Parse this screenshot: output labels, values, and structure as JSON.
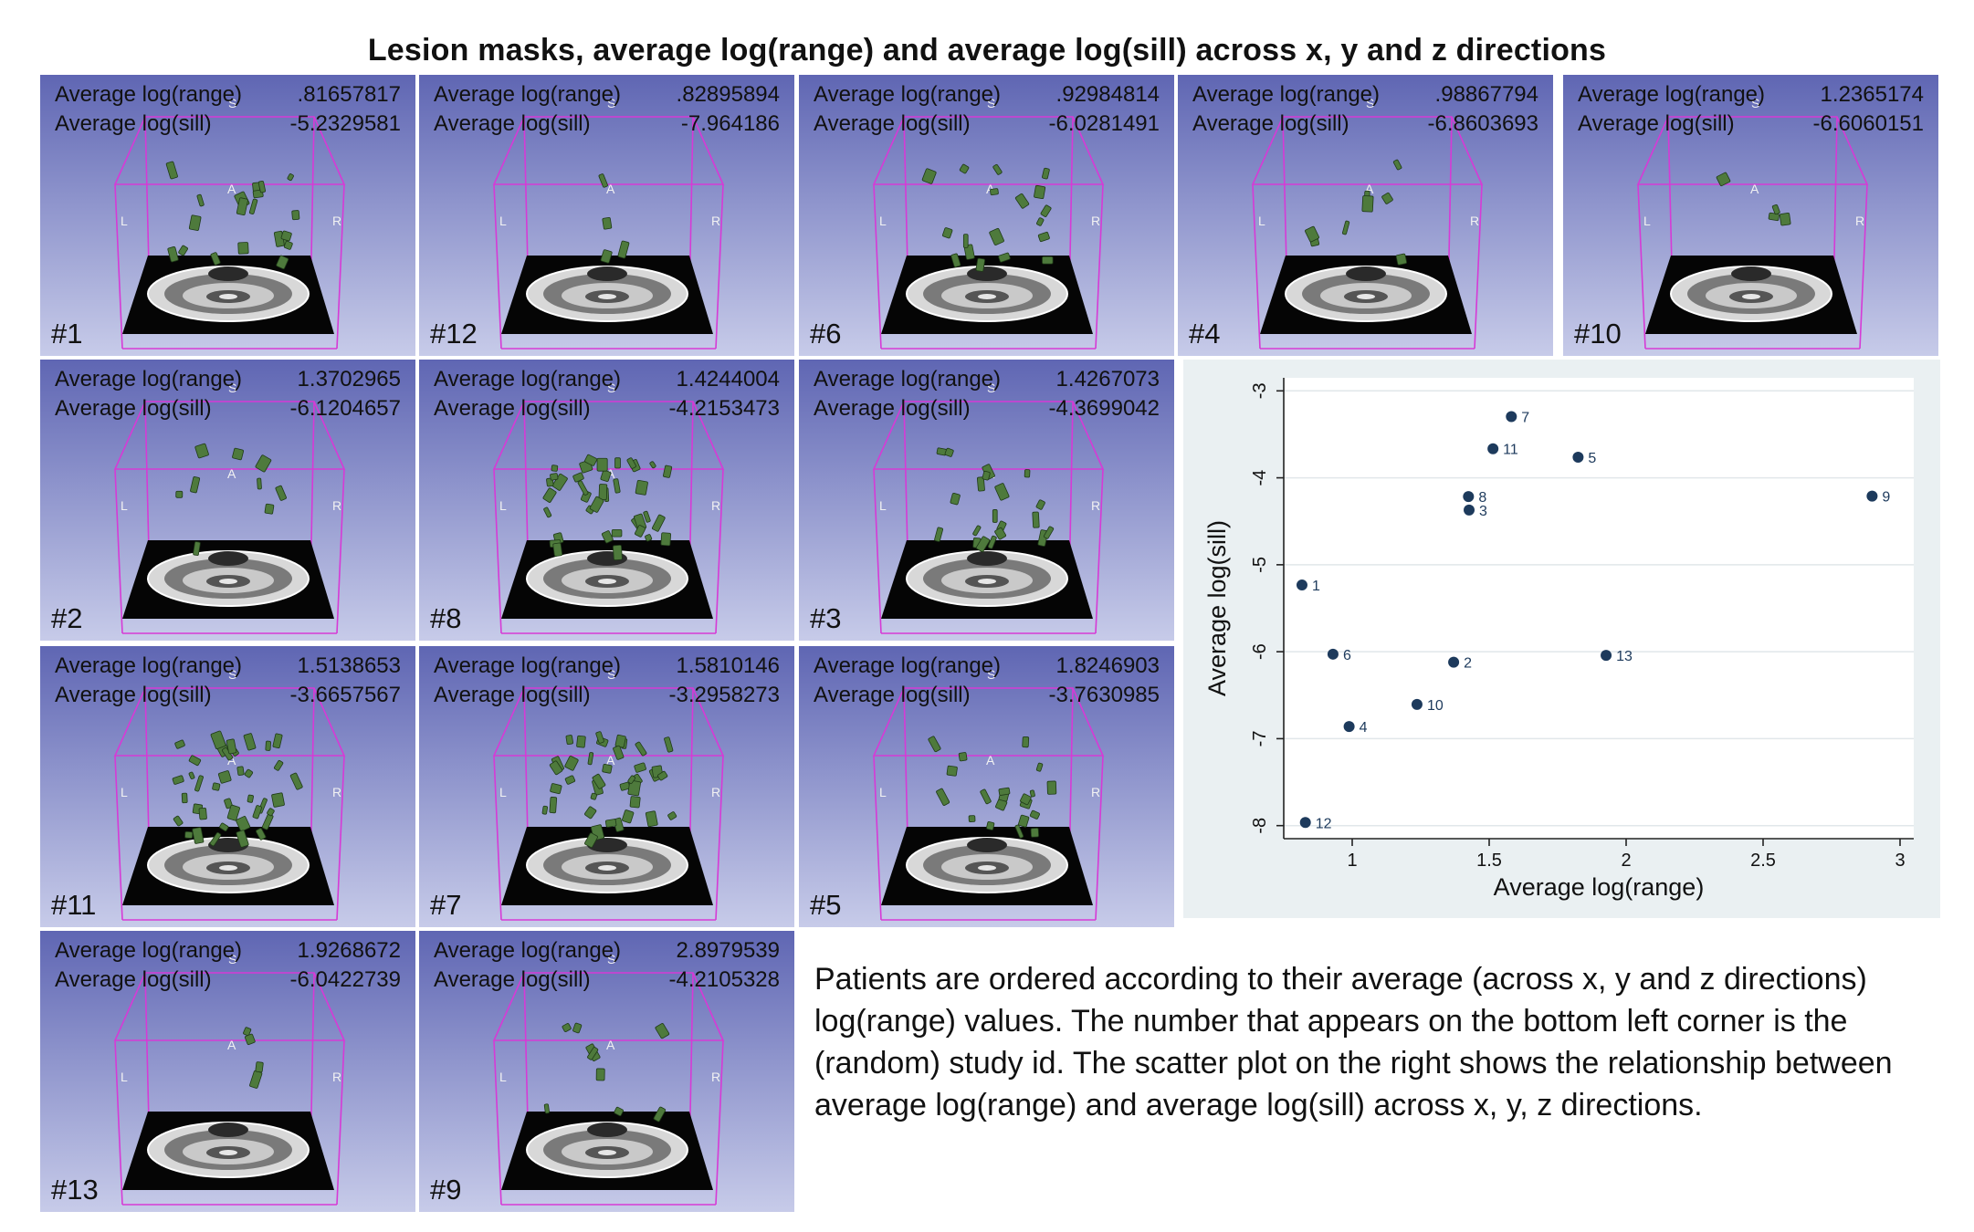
{
  "title": "Lesion masks, average log(range) and average log(sill) across x, y and z directions",
  "panels": [
    {
      "id": "#1",
      "range_label": "Average log(range)",
      "range": ".81657817",
      "sill_label": "Average log(sill)",
      "sill": "-5.2329581",
      "lesion": "medium"
    },
    {
      "id": "#12",
      "range_label": "Average log(range)",
      "range": ".82895894",
      "sill_label": "Average log(sill)",
      "sill": "-7.964186",
      "lesion": "tiny"
    },
    {
      "id": "#6",
      "range_label": "Average log(range)",
      "range": ".92984814",
      "sill_label": "Average log(sill)",
      "sill": "-6.0281491",
      "lesion": "scattered"
    },
    {
      "id": "#4",
      "range_label": "Average log(range)",
      "range": ".98867794",
      "sill_label": "Average log(sill)",
      "sill": "-6.8603693",
      "lesion": "small"
    },
    {
      "id": "#10",
      "range_label": "Average log(range)",
      "range": "1.2365174",
      "sill_label": "Average log(sill)",
      "sill": "-6.6060151",
      "lesion": "tiny"
    },
    {
      "id": "#2",
      "range_label": "Average log(range)",
      "range": "1.3702965",
      "sill_label": "Average log(sill)",
      "sill": "-6.1204657",
      "lesion": "small"
    },
    {
      "id": "#8",
      "range_label": "Average log(range)",
      "range": "1.4244004",
      "sill_label": "Average log(sill)",
      "sill": "-4.2153473",
      "lesion": "large"
    },
    {
      "id": "#3",
      "range_label": "Average log(range)",
      "range": "1.4267073",
      "sill_label": "Average log(sill)",
      "sill": "-4.3699042",
      "lesion": "medium"
    },
    {
      "id": "#11",
      "range_label": "Average log(range)",
      "range": "1.5138653",
      "sill_label": "Average log(sill)",
      "sill": "-3.6657567",
      "lesion": "large"
    },
    {
      "id": "#7",
      "range_label": "Average log(range)",
      "range": "1.5810146",
      "sill_label": "Average log(sill)",
      "sill": "-3.2958273",
      "lesion": "large"
    },
    {
      "id": "#5",
      "range_label": "Average log(range)",
      "range": "1.8246903",
      "sill_label": "Average log(sill)",
      "sill": "-3.7630985",
      "lesion": "medium"
    },
    {
      "id": "#13",
      "range_label": "Average log(range)",
      "range": "1.9268672",
      "sill_label": "Average log(sill)",
      "sill": "-6.0422739",
      "lesion": "tiny"
    },
    {
      "id": "#9",
      "range_label": "Average log(range)",
      "range": "2.8979539",
      "sill_label": "Average log(sill)",
      "sill": "-4.2105328",
      "lesion": "small"
    }
  ],
  "scene_labels": {
    "left": "L",
    "right": "R",
    "anterior": "A",
    "superior": "S"
  },
  "caption": "Patients are ordered according to their average (across x, y and z directions) log(range) values. The number that appears on the bottom left corner is the (random) study id. The scatter plot on the right shows the relationship between average log(range) and average log(sill) across x, y, z directions.",
  "colors": {
    "panel_top": "#5f66b3",
    "panel_bottom": "#c7cbe9",
    "box_line": "#d63ad6",
    "lesion": "#4e7a3c",
    "marker": "#1d3a5c",
    "plot_bg": "#eaf0f2"
  },
  "chart_data": {
    "type": "scatter",
    "title": "",
    "xlabel": "Average log(range)",
    "ylabel": "Average log(sill)",
    "xlim": [
      0.75,
      3.05
    ],
    "ylim": [
      -8.15,
      -2.85
    ],
    "xticks": [
      1,
      1.5,
      2,
      2.5,
      3
    ],
    "xtick_labels": [
      "1",
      "1.5",
      "2",
      "2.5",
      "3"
    ],
    "yticks": [
      -8,
      -7,
      -6,
      -5,
      -4,
      -3
    ],
    "ytick_labels": [
      "-8",
      "-7",
      "-6",
      "-5",
      "-4",
      "-3"
    ],
    "grid": "horizontal",
    "points": [
      {
        "label": "1",
        "x": 0.8166,
        "y": -5.233
      },
      {
        "label": "12",
        "x": 0.829,
        "y": -7.9642
      },
      {
        "label": "6",
        "x": 0.9298,
        "y": -6.0281
      },
      {
        "label": "4",
        "x": 0.9887,
        "y": -6.8604
      },
      {
        "label": "10",
        "x": 1.2365,
        "y": -6.606
      },
      {
        "label": "2",
        "x": 1.3703,
        "y": -6.1205
      },
      {
        "label": "8",
        "x": 1.4244,
        "y": -4.2153
      },
      {
        "label": "3",
        "x": 1.4267,
        "y": -4.3699
      },
      {
        "label": "11",
        "x": 1.5139,
        "y": -3.6658
      },
      {
        "label": "7",
        "x": 1.581,
        "y": -3.2958
      },
      {
        "label": "5",
        "x": 1.8247,
        "y": -3.7631
      },
      {
        "label": "13",
        "x": 1.9269,
        "y": -6.0423
      },
      {
        "label": "9",
        "x": 2.898,
        "y": -4.2105
      }
    ]
  }
}
